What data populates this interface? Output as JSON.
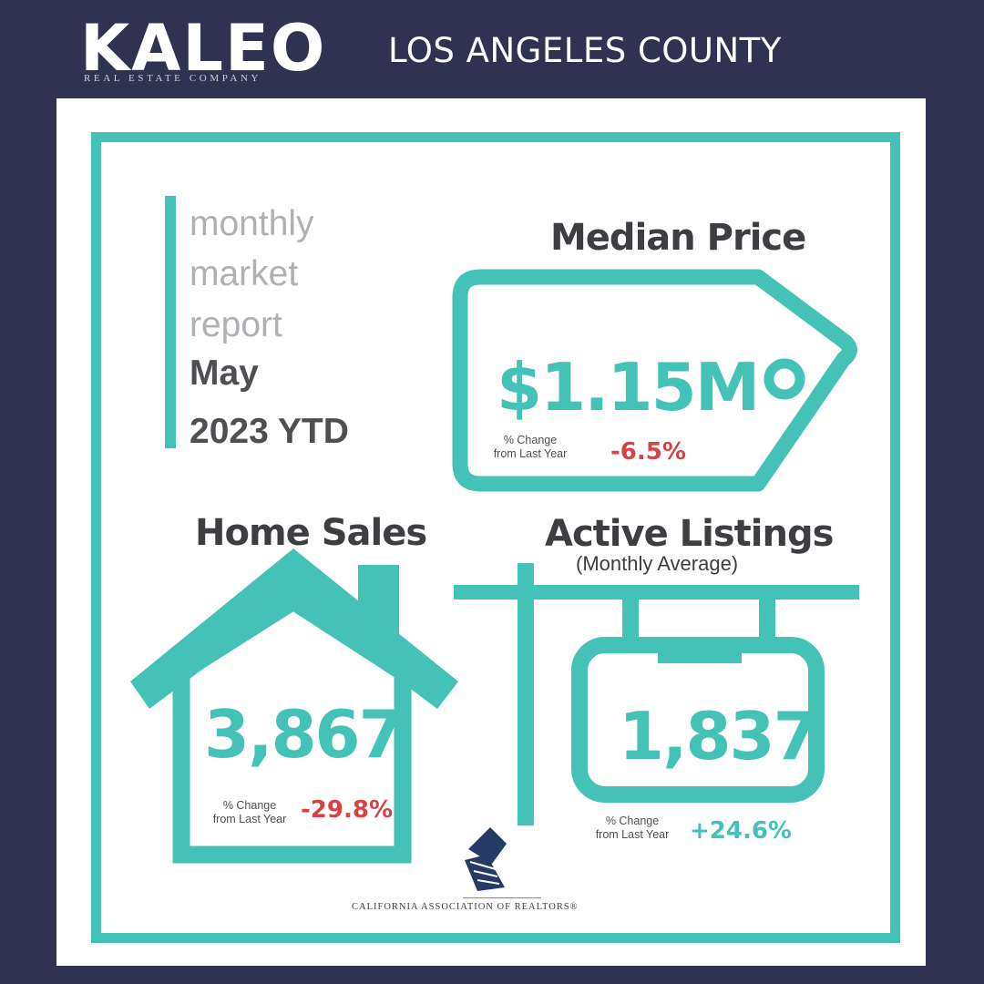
{
  "header": {
    "logo_word": "KALEO",
    "logo_subtitle": "REAL ESTATE COMPANY",
    "region": "LOS ANGELES COUNTY"
  },
  "report": {
    "lines_light": [
      "monthly",
      "market",
      "report"
    ],
    "month": "May",
    "period": "2023 YTD"
  },
  "median_price": {
    "title": "Median Price",
    "value": "$1.15M",
    "change_label": [
      "% Change",
      "from Last Year"
    ],
    "change_value": "-6.5%"
  },
  "home_sales": {
    "title": "Home Sales",
    "value": "3,867",
    "change_label": [
      "% Change",
      "from Last Year"
    ],
    "change_value": "-29.8%"
  },
  "active_listings": {
    "title": "Active Listings",
    "subtitle": "(Monthly Average)",
    "value": "1,837",
    "change_label": [
      "% Change",
      "from Last Year"
    ],
    "change_value": "+24.6%"
  },
  "footer": {
    "association": "CALIFORNIA ASSOCIATION OF REALTORS®"
  },
  "colors": {
    "background": "#2f3250",
    "accent": "#45c2b8",
    "negative": "#d64246",
    "positive": "#45c2b8"
  }
}
